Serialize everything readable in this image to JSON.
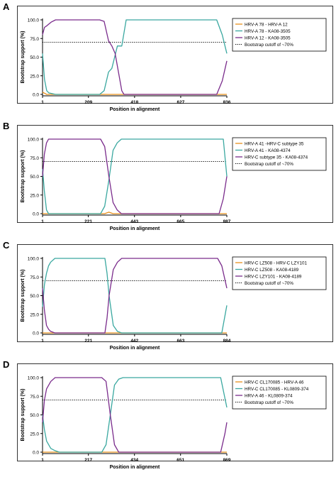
{
  "colors": {
    "orange": "#e8901c",
    "teal": "#3aa8a0",
    "purple": "#7a2c8c",
    "cutoff": "#000000"
  },
  "axis": {
    "ylabel": "Bootstrap support (%)",
    "xlabel": "Position in alignment",
    "yticks": [
      "0.0",
      "25.0",
      "50.0",
      "75.0",
      "100.0"
    ]
  },
  "chart_data": [
    {
      "panel": "A",
      "type": "line",
      "xticks": [
        1,
        209,
        418,
        627,
        836
      ],
      "xlim": [
        1,
        836
      ],
      "ylim": [
        0,
        100
      ],
      "cutoff": 70,
      "series": [
        {
          "name": "HRV-A 78 - HRV-A 12",
          "color": "orange",
          "x": [
            1,
            20,
            836
          ],
          "y": [
            3,
            0,
            0
          ]
        },
        {
          "name": "HRV-A 78 - KA08-3505",
          "color": "teal",
          "x": [
            1,
            10,
            20,
            30,
            60,
            100,
            200,
            260,
            280,
            300,
            315,
            340,
            360,
            380,
            418,
            600,
            760,
            790,
            815,
            836
          ],
          "y": [
            55,
            20,
            5,
            2,
            0,
            0,
            0,
            0,
            5,
            30,
            35,
            65,
            65,
            100,
            100,
            100,
            100,
            100,
            80,
            55
          ]
        },
        {
          "name": "HRV-A 12 - KA08-3505",
          "color": "purple",
          "x": [
            1,
            10,
            20,
            40,
            60,
            100,
            200,
            260,
            280,
            300,
            315,
            330,
            345,
            360,
            370,
            380,
            390,
            418,
            600,
            760,
            790,
            815,
            836
          ],
          "y": [
            80,
            90,
            92,
            97,
            100,
            100,
            100,
            100,
            98,
            72,
            65,
            55,
            30,
            5,
            0,
            0,
            0,
            0,
            0,
            0,
            0,
            18,
            45
          ]
        }
      ]
    },
    {
      "panel": "B",
      "type": "line",
      "xticks": [
        1,
        221,
        443,
        665,
        887
      ],
      "xlim": [
        1,
        887
      ],
      "ylim": [
        0,
        100
      ],
      "cutoff": 70,
      "series": [
        {
          "name": "HRV-A 41 -HRV-C subtype 35",
          "color": "orange",
          "x": [
            1,
            300,
            320,
            340,
            887
          ],
          "y": [
            0,
            0,
            2,
            0,
            0
          ]
        },
        {
          "name": "HRV-A 41 - KA08-4374",
          "color": "teal",
          "x": [
            1,
            10,
            20,
            30,
            60,
            280,
            300,
            320,
            340,
            360,
            380,
            420,
            600,
            870,
            887
          ],
          "y": [
            60,
            30,
            5,
            0,
            0,
            0,
            10,
            45,
            85,
            95,
            100,
            100,
            100,
            100,
            50
          ]
        },
        {
          "name": "HRV-C subtype 35 - KA08-4374",
          "color": "purple",
          "x": [
            1,
            10,
            20,
            30,
            60,
            280,
            300,
            320,
            340,
            360,
            380,
            600,
            850,
            870,
            887
          ],
          "y": [
            50,
            80,
            95,
            100,
            100,
            100,
            90,
            50,
            15,
            5,
            0,
            0,
            0,
            20,
            50
          ]
        }
      ]
    },
    {
      "panel": "C",
      "type": "line",
      "xticks": [
        1,
        221,
        442,
        663,
        884
      ],
      "xlim": [
        1,
        884
      ],
      "ylim": [
        0,
        100
      ],
      "cutoff": 70,
      "series": [
        {
          "name": "HRV-C LZ508 - HRV-C LZY101",
          "color": "orange",
          "x": [
            1,
            884
          ],
          "y": [
            0,
            0
          ]
        },
        {
          "name": "HRV-C LZ508 - KA08-4189",
          "color": "teal",
          "x": [
            1,
            10,
            20,
            30,
            40,
            60,
            80,
            300,
            310,
            320,
            340,
            360,
            380,
            600,
            860,
            884
          ],
          "y": [
            35,
            65,
            80,
            90,
            95,
            100,
            100,
            100,
            80,
            50,
            10,
            2,
            0,
            0,
            0,
            37
          ]
        },
        {
          "name": "HRV-C LZY101 - KA08-4189",
          "color": "purple",
          "x": [
            1,
            10,
            20,
            30,
            40,
            60,
            300,
            310,
            320,
            340,
            360,
            380,
            420,
            600,
            840,
            860,
            884
          ],
          "y": [
            60,
            30,
            10,
            5,
            2,
            0,
            0,
            20,
            50,
            85,
            95,
            100,
            100,
            100,
            100,
            90,
            60
          ]
        }
      ]
    },
    {
      "panel": "D",
      "type": "line",
      "xticks": [
        1,
        217,
        434,
        651,
        869
      ],
      "xlim": [
        1,
        869
      ],
      "ylim": [
        0,
        100
      ],
      "cutoff": 70,
      "series": [
        {
          "name": "HRV-C CL170085 - HRV-A 46",
          "color": "orange",
          "x": [
            1,
            869
          ],
          "y": [
            0,
            0
          ]
        },
        {
          "name": "HRV-C CL170085 - KL0809-374",
          "color": "teal",
          "x": [
            1,
            10,
            20,
            40,
            60,
            80,
            280,
            300,
            320,
            340,
            360,
            380,
            600,
            840,
            869
          ],
          "y": [
            50,
            30,
            15,
            5,
            2,
            0,
            0,
            10,
            50,
            90,
            98,
            100,
            100,
            100,
            60
          ]
        },
        {
          "name": "HRV-A 46 - KL0809-374",
          "color": "purple",
          "x": [
            1,
            10,
            20,
            40,
            60,
            80,
            280,
            300,
            320,
            340,
            360,
            600,
            840,
            860,
            869
          ],
          "y": [
            40,
            70,
            85,
            95,
            100,
            100,
            100,
            95,
            50,
            10,
            0,
            0,
            0,
            25,
            40
          ]
        }
      ]
    }
  ],
  "legend": {
    "cutoff_label": "Bootstrap cutoff of ~70%"
  }
}
